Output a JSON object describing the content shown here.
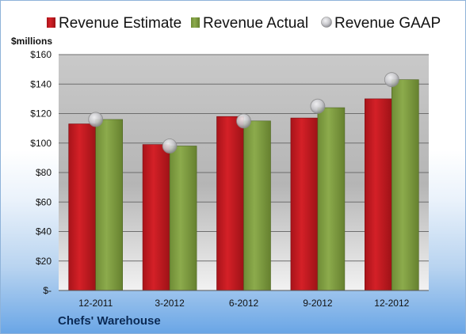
{
  "company": "Chefs' Warehouse",
  "colors": {
    "estimate": "#d42027",
    "actual": "#8cab4c",
    "gaap": "#c8c8cc",
    "plot_bg_top": "#c9c9c9",
    "plot_bg_bottom": "#f2f2f2"
  },
  "chart_data": {
    "type": "bar",
    "ylabel": "$millions",
    "ylim": [
      0,
      160
    ],
    "yticks": [
      0,
      20,
      40,
      60,
      80,
      100,
      120,
      140,
      160
    ],
    "ytick_labels": [
      "$-",
      "$20",
      "$40",
      "$60",
      "$80",
      "$100",
      "$120",
      "$140",
      "$160"
    ],
    "categories": [
      "12-2011",
      "3-2012",
      "6-2012",
      "9-2012",
      "12-2012"
    ],
    "legend_position": "top",
    "grid": true,
    "series": [
      {
        "name": "Revenue Estimate",
        "kind": "bar",
        "values": [
          113,
          99,
          118,
          117,
          130
        ]
      },
      {
        "name": "Revenue Actual",
        "kind": "bar",
        "values": [
          116,
          98,
          115,
          124,
          143
        ]
      },
      {
        "name": "Revenue GAAP",
        "kind": "marker",
        "values": [
          116,
          98,
          115,
          125,
          143
        ]
      }
    ]
  }
}
